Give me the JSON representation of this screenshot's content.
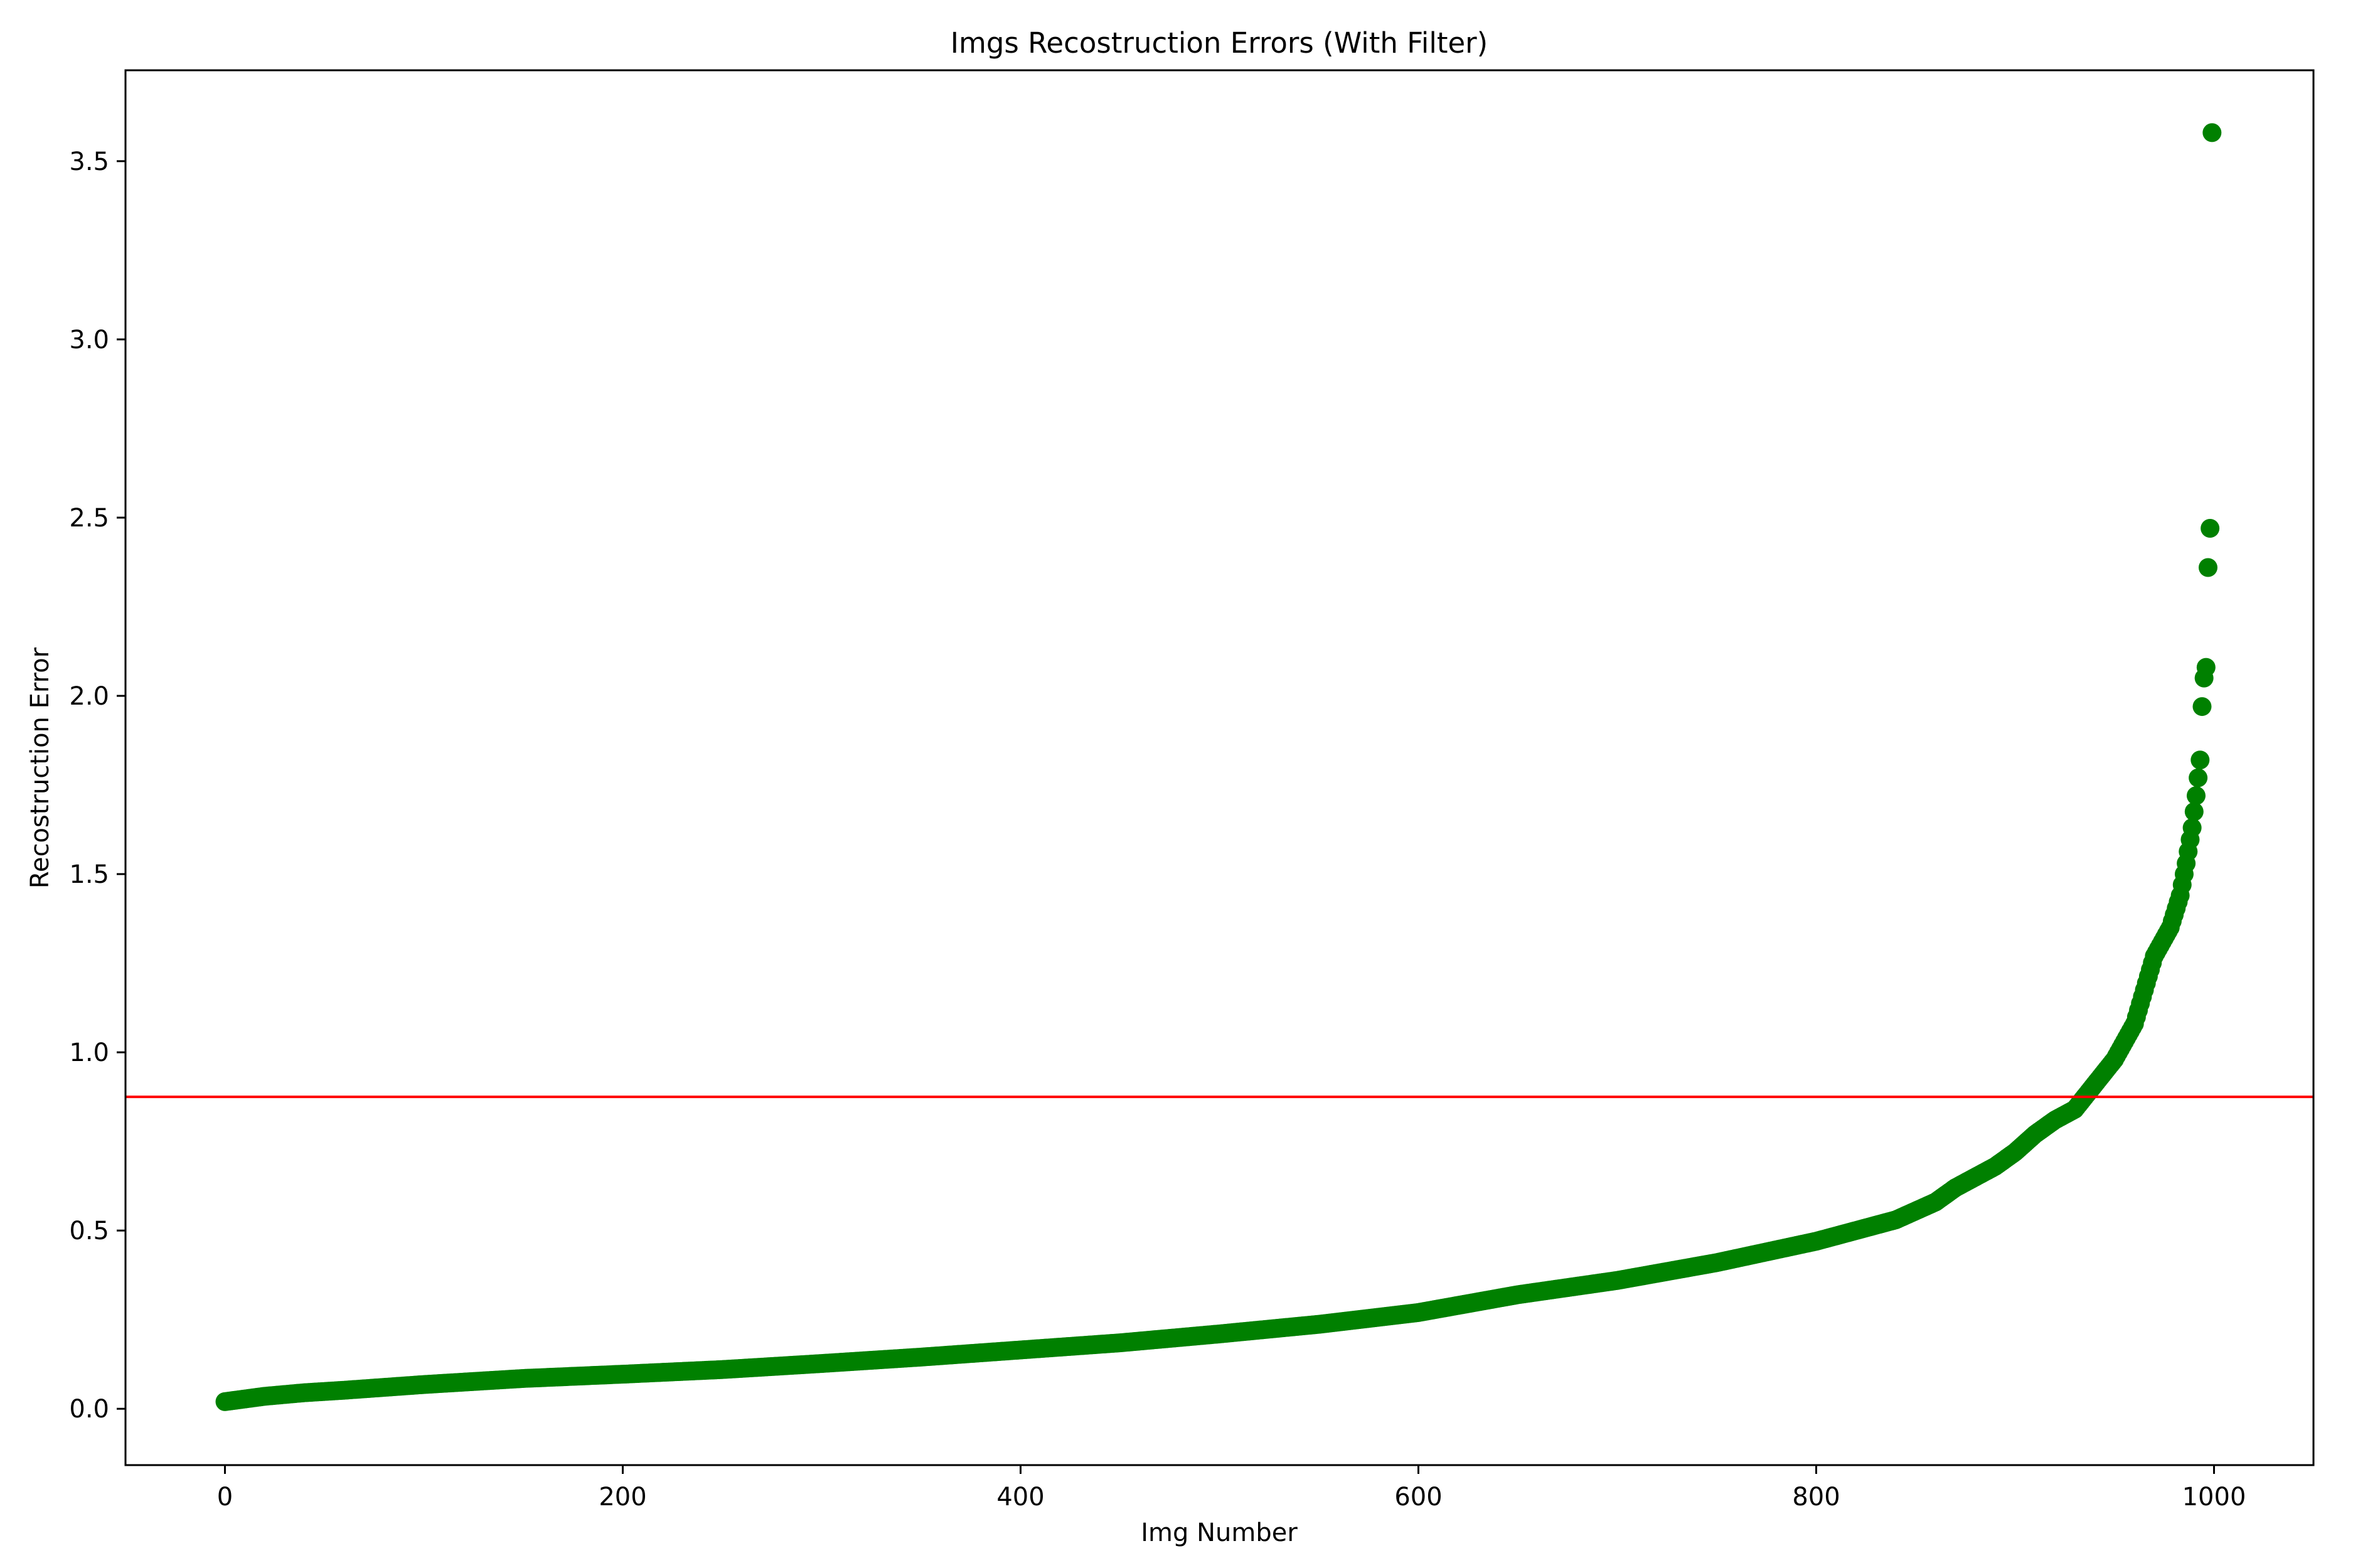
{
  "chart_data": {
    "type": "scatter",
    "title": "Imgs Recostruction Errors (With Filter)",
    "xlabel": "Img Number",
    "ylabel": "Recostruction Error",
    "xlim": [
      -50,
      1050
    ],
    "ylim": [
      -0.158,
      3.755
    ],
    "xticks": [
      0,
      200,
      400,
      600,
      800,
      1000
    ],
    "xtick_labels": [
      "0",
      "200",
      "400",
      "600",
      "800",
      "1000"
    ],
    "yticks": [
      0.0,
      0.5,
      1.0,
      1.5,
      2.0,
      2.5,
      3.0,
      3.5
    ],
    "ytick_labels": [
      "0.0",
      "0.5",
      "1.0",
      "1.5",
      "2.0",
      "2.5",
      "3.0",
      "3.5"
    ],
    "grid": false,
    "legend": "none",
    "point_color": "#008000",
    "threshold": {
      "y": 0.875,
      "color": "#ff0000"
    },
    "series": [
      {
        "n_points": 1000,
        "anchors": [
          [
            0,
            0.02
          ],
          [
            20,
            0.035
          ],
          [
            40,
            0.045
          ],
          [
            60,
            0.052
          ],
          [
            80,
            0.06
          ],
          [
            100,
            0.068
          ],
          [
            150,
            0.085
          ],
          [
            200,
            0.097
          ],
          [
            250,
            0.11
          ],
          [
            300,
            0.127
          ],
          [
            350,
            0.145
          ],
          [
            400,
            0.165
          ],
          [
            450,
            0.185
          ],
          [
            500,
            0.21
          ],
          [
            550,
            0.237
          ],
          [
            600,
            0.27
          ],
          [
            650,
            0.32
          ],
          [
            700,
            0.36
          ],
          [
            750,
            0.41
          ],
          [
            800,
            0.47
          ],
          [
            840,
            0.53
          ],
          [
            860,
            0.58
          ],
          [
            870,
            0.62
          ],
          [
            890,
            0.68
          ],
          [
            900,
            0.72
          ],
          [
            910,
            0.77
          ],
          [
            920,
            0.81
          ],
          [
            930,
            0.84
          ],
          [
            940,
            0.91
          ],
          [
            950,
            0.98
          ],
          [
            960,
            1.08
          ],
          [
            970,
            1.27
          ],
          [
            978,
            1.35
          ],
          [
            983,
            1.44
          ],
          [
            986,
            1.53
          ],
          [
            989,
            1.63
          ],
          [
            991,
            1.72
          ],
          [
            993,
            1.82
          ],
          [
            994,
            1.97
          ],
          [
            995,
            2.05
          ],
          [
            996,
            2.08
          ],
          [
            997,
            2.36
          ],
          [
            998,
            2.47
          ],
          [
            999,
            3.58
          ]
        ]
      }
    ]
  }
}
